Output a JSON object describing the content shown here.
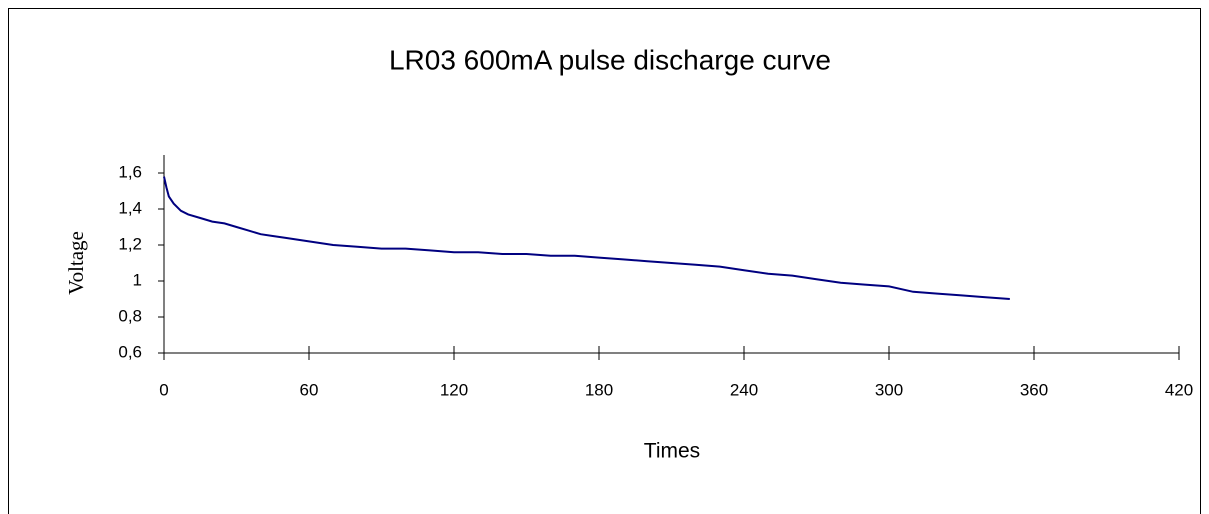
{
  "chart_data": {
    "type": "line",
    "title": "LR03  600mA pulse discharge curve",
    "x_label": "Times",
    "y_label": "Voltage",
    "color": "#000080",
    "x": [
      0,
      1,
      2,
      4,
      7,
      10,
      15,
      20,
      25,
      30,
      35,
      40,
      45,
      50,
      60,
      70,
      80,
      90,
      100,
      110,
      120,
      130,
      140,
      150,
      160,
      170,
      180,
      190,
      200,
      210,
      220,
      230,
      240,
      250,
      260,
      270,
      280,
      290,
      300,
      310,
      320,
      330,
      340,
      350
    ],
    "values": [
      1.58,
      1.52,
      1.47,
      1.43,
      1.39,
      1.37,
      1.35,
      1.33,
      1.32,
      1.3,
      1.28,
      1.26,
      1.25,
      1.24,
      1.22,
      1.2,
      1.19,
      1.18,
      1.18,
      1.17,
      1.16,
      1.16,
      1.15,
      1.15,
      1.14,
      1.14,
      1.13,
      1.12,
      1.11,
      1.1,
      1.09,
      1.08,
      1.06,
      1.04,
      1.03,
      1.01,
      0.99,
      0.98,
      0.97,
      0.94,
      0.93,
      0.92,
      0.91,
      0.9
    ],
    "xlim": [
      0,
      420
    ],
    "xticks": [
      0,
      60,
      120,
      180,
      240,
      300,
      360,
      420
    ],
    "ylim": [
      0.6,
      1.7
    ],
    "yticks": [
      {
        "value": 0.6,
        "label": "0,6"
      },
      {
        "value": 0.8,
        "label": "0,8"
      },
      1,
      {
        "value": 1.2,
        "label": "1,2"
      },
      {
        "value": 1.4,
        "label": "1,4"
      },
      {
        "value": 1.6,
        "label": "1,6"
      }
    ],
    "grid": false
  }
}
